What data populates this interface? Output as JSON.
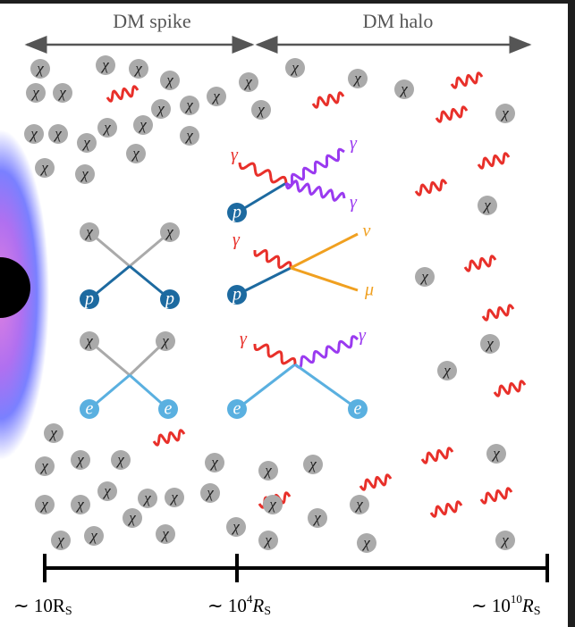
{
  "header": {
    "left_region": "DM spike",
    "right_region": "DM halo"
  },
  "symbols": {
    "chi": "χ",
    "p": "p",
    "e": "e",
    "gamma": "γ",
    "nu": "ν",
    "mu": "μ"
  },
  "scale": {
    "ticks": [
      {
        "text": "∼ 10R",
        "sub": "S"
      },
      {
        "text": "∼ 10",
        "sup": "4",
        "var": "R",
        "sub": "S"
      },
      {
        "text": "∼ 10",
        "sup": "10",
        "var": "R",
        "sub": "S"
      }
    ]
  }
}
